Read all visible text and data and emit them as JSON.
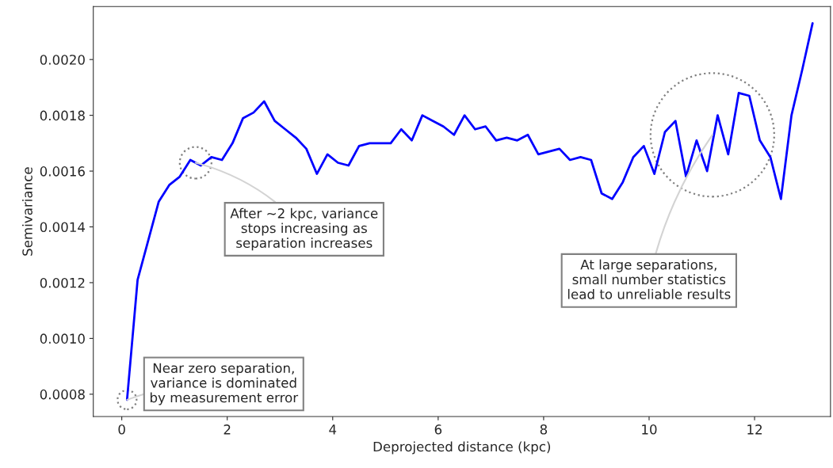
{
  "chart_data": {
    "type": "line",
    "xlabel": "Deprojected distance (kpc)",
    "ylabel": "Semivariance",
    "x": [
      0.1,
      0.3,
      0.5,
      0.7,
      0.9,
      1.1,
      1.3,
      1.5,
      1.7,
      1.9,
      2.1,
      2.3,
      2.5,
      2.7,
      2.9,
      3.1,
      3.3,
      3.5,
      3.7,
      3.9,
      4.1,
      4.3,
      4.5,
      4.7,
      4.9,
      5.1,
      5.3,
      5.5,
      5.7,
      5.9,
      6.1,
      6.3,
      6.5,
      6.7,
      6.9,
      7.1,
      7.3,
      7.5,
      7.7,
      7.9,
      8.1,
      8.3,
      8.5,
      8.7,
      8.9,
      9.1,
      9.3,
      9.5,
      9.7,
      9.9,
      10.1,
      10.3,
      10.5,
      10.7,
      10.9,
      11.1,
      11.3,
      11.5,
      11.7,
      11.9,
      12.1,
      12.3,
      12.5,
      12.7,
      12.9,
      13.1
    ],
    "series": [
      {
        "color": "#0000ff",
        "values": [
          0.00078,
          0.00121,
          0.00135,
          0.00149,
          0.00155,
          0.00158,
          0.00164,
          0.00162,
          0.00165,
          0.00164,
          0.0017,
          0.00179,
          0.00181,
          0.00185,
          0.00178,
          0.00175,
          0.00172,
          0.00168,
          0.00159,
          0.00166,
          0.00163,
          0.00162,
          0.00169,
          0.0017,
          0.0017,
          0.0017,
          0.00175,
          0.00171,
          0.0018,
          0.00178,
          0.00176,
          0.00173,
          0.0018,
          0.00175,
          0.00176,
          0.00171,
          0.00172,
          0.00171,
          0.00173,
          0.00166,
          0.00167,
          0.00168,
          0.00164,
          0.00165,
          0.00164,
          0.00152,
          0.0015,
          0.00156,
          0.00165,
          0.00169,
          0.00159,
          0.00174,
          0.00178,
          0.00158,
          0.00171,
          0.0016,
          0.0018,
          0.00166,
          0.00188,
          0.00187,
          0.00171,
          0.00165,
          0.0015,
          0.0018,
          0.00196,
          0.00213
        ]
      }
    ],
    "xlim": [
      -0.54,
      13.44
    ],
    "ylim": [
      0.00072,
      0.00219
    ],
    "xticks": [
      0,
      2,
      4,
      6,
      8,
      10,
      12
    ],
    "yticks": [
      0.0008,
      {
        "value": 0.001,
        "label": "0.0010"
      },
      0.0012,
      0.0014,
      0.0016,
      0.0018,
      {
        "value": 0.002,
        "label": "0.0020"
      }
    ],
    "grid": false,
    "marker": "none",
    "line_style": "solid",
    "annotations": [
      {
        "text": "Near zero separation,\nvariance is dominated\nby measurement error",
        "x": 0.1,
        "y": 0.00078
      },
      {
        "text": "After ~2 kpc, variance\nstops increasing as\nseparation increases",
        "x": 1.4,
        "y": 0.00163
      },
      {
        "text": "At large separations,\nsmall number statistics\nlead to unreliable results",
        "x": 11.2,
        "y": 0.00173
      }
    ]
  }
}
